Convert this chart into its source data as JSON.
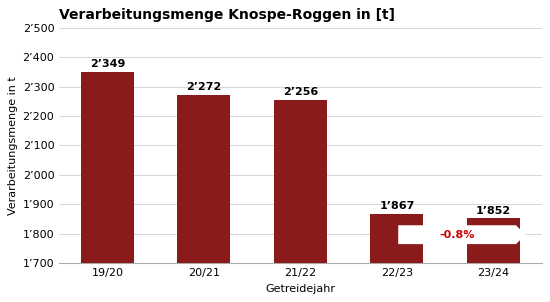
{
  "title": "Verarbeitungsmenge Knospe-Roggen in [t]",
  "categories": [
    "19/20",
    "20/21",
    "21/22",
    "22/23",
    "23/24"
  ],
  "values": [
    2349,
    2272,
    2256,
    1867,
    1852
  ],
  "labels": [
    "2’349",
    "2’272",
    "2’256",
    "1’867",
    "1’852"
  ],
  "bar_color": "#8B1A1A",
  "xlabel": "Getreidejahr",
  "ylabel": "Verarbeitungsmenge in t",
  "ylim": [
    1700,
    2500
  ],
  "yticks": [
    1700,
    1800,
    1900,
    2000,
    2100,
    2200,
    2300,
    2400,
    2500
  ],
  "ytick_labels": [
    "1’700",
    "1’800",
    "1’900",
    "2’000",
    "2’100",
    "2’200",
    "2’300",
    "2’400",
    "2’500"
  ],
  "arrow_label": "-0.8%",
  "arrow_color": "#CC0000",
  "background_color": "#ffffff",
  "title_fontsize": 10,
  "label_fontsize": 8,
  "tick_fontsize": 8,
  "axis_label_fontsize": 8
}
